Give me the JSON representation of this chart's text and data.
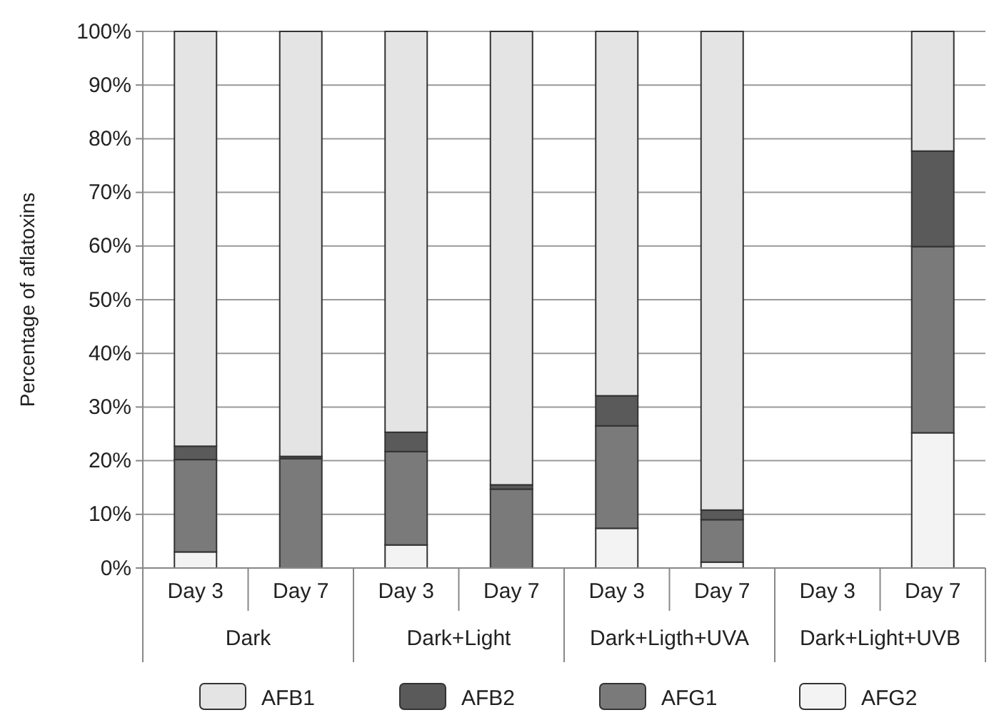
{
  "chart_data": {
    "type": "bar",
    "stacked": true,
    "ylabel": "Percentage of aflatoxins",
    "categories": [
      "Day 3",
      "Day 7",
      "Day 3",
      "Day 7",
      "Day 3",
      "Day 7",
      "Day 3",
      "Day 7"
    ],
    "annotations": [
      "Dark",
      "Dark+Light",
      "Dark+Ligth+UVA",
      "Dark+Light+UVB"
    ],
    "series": [
      {
        "name": "AFG2",
        "color": "#f3f3f3",
        "values": [
          3,
          null,
          4.3,
          null,
          7.4,
          1.1,
          null,
          25.2
        ]
      },
      {
        "name": "AFG1",
        "color": "#7a7a7a",
        "values": [
          17.2,
          20.4,
          17.4,
          14.7,
          19.1,
          7.9,
          null,
          34.7
        ]
      },
      {
        "name": "AFB2",
        "color": "#5a5a5a",
        "values": [
          2.5,
          0.4,
          3.6,
          0.8,
          5.6,
          1.8,
          null,
          17.8
        ]
      },
      {
        "name": "AFB1",
        "color": "#e4e4e4",
        "values": [
          77.3,
          79.2,
          74.7,
          84.5,
          67.9,
          89.2,
          null,
          22.3
        ]
      }
    ],
    "ylim": [
      0,
      100
    ],
    "yticks": [
      {
        "value": 0,
        "label": "0%"
      },
      {
        "value": 10,
        "label": "10%"
      },
      {
        "value": 20,
        "label": "20%"
      },
      {
        "value": 30,
        "label": "30%"
      },
      {
        "value": 40,
        "label": "40%"
      },
      {
        "value": 50,
        "label": "50%"
      },
      {
        "value": 60,
        "label": "60%"
      },
      {
        "value": 70,
        "label": "70%"
      },
      {
        "value": 80,
        "label": "80%"
      },
      {
        "value": 90,
        "label": "90%"
      },
      {
        "value": 100,
        "label": "100%"
      }
    ],
    "grid": "y",
    "legend": "bottom"
  }
}
